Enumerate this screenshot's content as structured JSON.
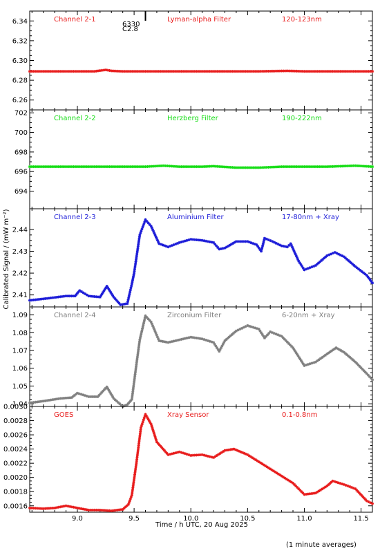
{
  "figure": {
    "ylabel": "Calibrated Signal / (mW m⁻²)",
    "xlabel": "Time / h UTC, 20 Aug 2025",
    "footnote": "(1 minute averages)",
    "marker": {
      "label_a": "6330",
      "label_b": "C2.8",
      "x": 9.6
    }
  },
  "colors": {
    "red": "#e81c1c",
    "green": "#16dd16",
    "blue": "#1c1cd8",
    "gray": "#808080",
    "axis": "#000000"
  },
  "chart_data": [
    {
      "type": "scatter",
      "panel_label": "Channel 2-1",
      "filter": "Lyman-alpha Filter",
      "range": "120-123nm",
      "color": "red",
      "ylim": [
        6.25,
        6.35
      ],
      "yticks": [
        "6.26",
        "6.28",
        "6.30",
        "6.32",
        "6.34"
      ],
      "xlim": [
        8.58,
        11.6
      ],
      "points": [
        [
          8.58,
          6.289
        ],
        [
          8.8,
          6.289
        ],
        [
          9.0,
          6.289
        ],
        [
          9.15,
          6.289
        ],
        [
          9.25,
          6.2905
        ],
        [
          9.3,
          6.2895
        ],
        [
          9.4,
          6.289
        ],
        [
          9.6,
          6.289
        ],
        [
          9.8,
          6.289
        ],
        [
          10.0,
          6.289
        ],
        [
          10.2,
          6.289
        ],
        [
          10.4,
          6.289
        ],
        [
          10.6,
          6.289
        ],
        [
          10.85,
          6.2895
        ],
        [
          11.0,
          6.289
        ],
        [
          11.2,
          6.289
        ],
        [
          11.4,
          6.289
        ],
        [
          11.6,
          6.289
        ]
      ]
    },
    {
      "type": "scatter",
      "panel_label": "Channel 2-2",
      "filter": "Herzberg Filter",
      "range": "190-222nm",
      "color": "green",
      "ylim": [
        692.2,
        702.3
      ],
      "yticks": [
        "694",
        "696",
        "698",
        "700",
        "702"
      ],
      "xlim": [
        8.58,
        11.6
      ],
      "points": [
        [
          8.58,
          696.5
        ],
        [
          8.8,
          696.5
        ],
        [
          9.0,
          696.5
        ],
        [
          9.2,
          696.5
        ],
        [
          9.4,
          696.5
        ],
        [
          9.6,
          696.5
        ],
        [
          9.76,
          696.6
        ],
        [
          9.9,
          696.5
        ],
        [
          10.1,
          696.5
        ],
        [
          10.2,
          696.55
        ],
        [
          10.4,
          696.4
        ],
        [
          10.6,
          696.4
        ],
        [
          10.8,
          696.5
        ],
        [
          11.0,
          696.5
        ],
        [
          11.2,
          696.5
        ],
        [
          11.45,
          696.6
        ],
        [
          11.6,
          696.5
        ]
      ]
    },
    {
      "type": "scatter",
      "panel_label": "Channel 2-3",
      "filter": "Aluminium Filter",
      "range": "17-80nm + Xray",
      "color": "blue",
      "ylim": [
        2.4045,
        2.4495
      ],
      "yticks": [
        "2.41",
        "2.42",
        "2.43",
        "2.44"
      ],
      "xlim": [
        8.58,
        11.6
      ],
      "points": [
        [
          8.58,
          2.4075
        ],
        [
          8.75,
          2.4085
        ],
        [
          8.9,
          2.4095
        ],
        [
          8.98,
          2.4095
        ],
        [
          9.02,
          2.412
        ],
        [
          9.1,
          2.4095
        ],
        [
          9.2,
          2.409
        ],
        [
          9.26,
          2.414
        ],
        [
          9.32,
          2.409
        ],
        [
          9.38,
          2.4055
        ],
        [
          9.44,
          2.406
        ],
        [
          9.48,
          2.415
        ],
        [
          9.5,
          2.42
        ],
        [
          9.55,
          2.4375
        ],
        [
          9.6,
          2.4445
        ],
        [
          9.65,
          2.4415
        ],
        [
          9.72,
          2.4335
        ],
        [
          9.8,
          2.432
        ],
        [
          9.9,
          2.434
        ],
        [
          10.0,
          2.4355
        ],
        [
          10.1,
          2.435
        ],
        [
          10.2,
          2.434
        ],
        [
          10.25,
          2.431
        ],
        [
          10.3,
          2.4315
        ],
        [
          10.4,
          2.4345
        ],
        [
          10.5,
          2.4345
        ],
        [
          10.58,
          2.433
        ],
        [
          10.62,
          2.43
        ],
        [
          10.65,
          2.436
        ],
        [
          10.72,
          2.4345
        ],
        [
          10.8,
          2.4325
        ],
        [
          10.85,
          2.432
        ],
        [
          10.88,
          2.4335
        ],
        [
          10.95,
          2.4255
        ],
        [
          11.0,
          2.4215
        ],
        [
          11.1,
          2.4235
        ],
        [
          11.2,
          2.428
        ],
        [
          11.27,
          2.4295
        ],
        [
          11.35,
          2.4275
        ],
        [
          11.45,
          2.423
        ],
        [
          11.55,
          2.419
        ],
        [
          11.6,
          2.4155
        ]
      ]
    },
    {
      "type": "scatter",
      "panel_label": "Channel 2-4",
      "filter": "Zirconium Filter",
      "range": "6-20nm + Xray",
      "color": "gray",
      "ylim": [
        1.0385,
        1.0945
      ],
      "yticks": [
        "1.04",
        "1.05",
        "1.06",
        "1.07",
        "1.08",
        "1.09"
      ],
      "xlim": [
        8.58,
        11.6
      ],
      "points": [
        [
          8.58,
          1.0405
        ],
        [
          8.7,
          1.0415
        ],
        [
          8.85,
          1.043
        ],
        [
          8.95,
          1.0435
        ],
        [
          9.0,
          1.046
        ],
        [
          9.1,
          1.044
        ],
        [
          9.18,
          1.044
        ],
        [
          9.26,
          1.0495
        ],
        [
          9.32,
          1.043
        ],
        [
          9.4,
          1.0385
        ],
        [
          9.44,
          1.0395
        ],
        [
          9.48,
          1.0425
        ],
        [
          9.52,
          1.062
        ],
        [
          9.55,
          1.076
        ],
        [
          9.6,
          1.0895
        ],
        [
          9.65,
          1.086
        ],
        [
          9.72,
          1.0755
        ],
        [
          9.8,
          1.0745
        ],
        [
          9.9,
          1.076
        ],
        [
          10.0,
          1.0775
        ],
        [
          10.1,
          1.0765
        ],
        [
          10.2,
          1.0745
        ],
        [
          10.25,
          1.0695
        ],
        [
          10.3,
          1.0755
        ],
        [
          10.4,
          1.081
        ],
        [
          10.5,
          1.084
        ],
        [
          10.6,
          1.082
        ],
        [
          10.65,
          1.077
        ],
        [
          10.7,
          1.0805
        ],
        [
          10.8,
          1.078
        ],
        [
          10.9,
          1.0715
        ],
        [
          11.0,
          1.0615
        ],
        [
          11.1,
          1.0635
        ],
        [
          11.2,
          1.068
        ],
        [
          11.28,
          1.0715
        ],
        [
          11.35,
          1.069
        ],
        [
          11.45,
          1.0635
        ],
        [
          11.55,
          1.057
        ],
        [
          11.6,
          1.0535
        ]
      ]
    },
    {
      "type": "scatter",
      "panel_label": "GOES",
      "filter": "Xray Sensor",
      "range": "0.1-0.8nm",
      "color": "red",
      "ylim": [
        0.00151,
        0.003
      ],
      "yticks": [
        "0.0016",
        "0.0018",
        "0.0020",
        "0.0022",
        "0.0024",
        "0.0026",
        "0.0028",
        "0.0030"
      ],
      "xlim": [
        8.58,
        11.6
      ],
      "points": [
        [
          8.58,
          0.00157
        ],
        [
          8.7,
          0.00156
        ],
        [
          8.8,
          0.00157
        ],
        [
          8.9,
          0.0016
        ],
        [
          9.0,
          0.00157
        ],
        [
          9.1,
          0.00154
        ],
        [
          9.2,
          0.00154
        ],
        [
          9.3,
          0.00153
        ],
        [
          9.4,
          0.00155
        ],
        [
          9.45,
          0.00162
        ],
        [
          9.48,
          0.00175
        ],
        [
          9.52,
          0.0022
        ],
        [
          9.56,
          0.0027
        ],
        [
          9.6,
          0.00289
        ],
        [
          9.65,
          0.00275
        ],
        [
          9.7,
          0.0025
        ],
        [
          9.8,
          0.00232
        ],
        [
          9.9,
          0.00236
        ],
        [
          10.0,
          0.00231
        ],
        [
          10.1,
          0.00232
        ],
        [
          10.2,
          0.00228
        ],
        [
          10.3,
          0.00238
        ],
        [
          10.38,
          0.0024
        ],
        [
          10.5,
          0.00232
        ],
        [
          10.7,
          0.00212
        ],
        [
          10.9,
          0.00192
        ],
        [
          11.0,
          0.00176
        ],
        [
          11.1,
          0.00178
        ],
        [
          11.2,
          0.00188
        ],
        [
          11.25,
          0.00195
        ],
        [
          11.35,
          0.0019
        ],
        [
          11.45,
          0.00184
        ],
        [
          11.55,
          0.00167
        ],
        [
          11.6,
          0.00163
        ]
      ]
    }
  ],
  "xaxis": {
    "xlim": [
      8.58,
      11.6
    ],
    "ticks": [
      "9.0",
      "9.5",
      "10.0",
      "10.5",
      "11.0",
      "11.5"
    ]
  }
}
